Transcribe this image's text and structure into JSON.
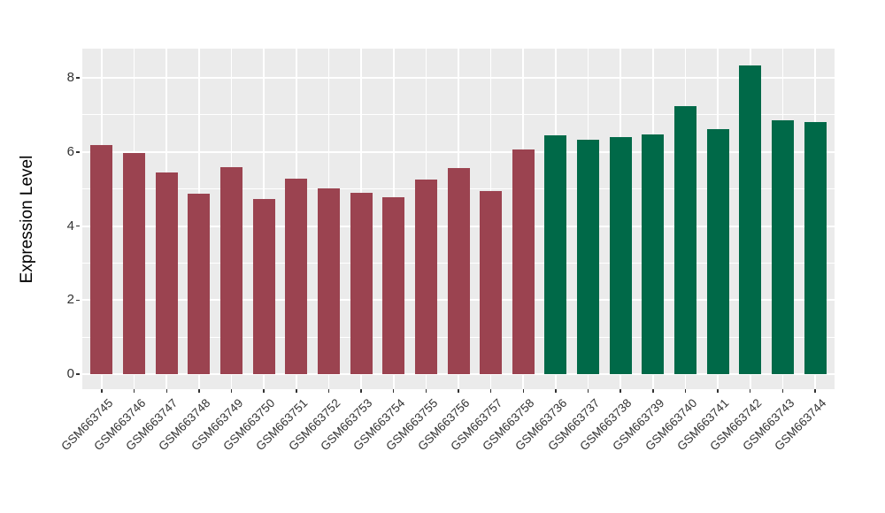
{
  "chart_data": {
    "type": "bar",
    "title": "",
    "ylabel": "Expression Level",
    "xlabel": "",
    "categories": [
      "GSM663745",
      "GSM663746",
      "GSM663747",
      "GSM663748",
      "GSM663749",
      "GSM663750",
      "GSM663751",
      "GSM663752",
      "GSM663753",
      "GSM663754",
      "GSM663755",
      "GSM663756",
      "GSM663757",
      "GSM663758",
      "GSM663736",
      "GSM663737",
      "GSM663738",
      "GSM663739",
      "GSM663740",
      "GSM663741",
      "GSM663742",
      "GSM663743",
      "GSM663744"
    ],
    "values": [
      6.18,
      5.96,
      5.44,
      4.87,
      5.58,
      4.73,
      5.28,
      5.01,
      4.89,
      4.77,
      5.26,
      5.56,
      4.95,
      6.06,
      6.44,
      6.34,
      6.4,
      6.47,
      7.23,
      6.62,
      8.34,
      6.86,
      6.81
    ],
    "bar_colors": [
      "#9B4350",
      "#9B4350",
      "#9B4350",
      "#9B4350",
      "#9B4350",
      "#9B4350",
      "#9B4350",
      "#9B4350",
      "#9B4350",
      "#9B4350",
      "#9B4350",
      "#9B4350",
      "#9B4350",
      "#9B4350",
      "#006948",
      "#006948",
      "#006948",
      "#006948",
      "#006948",
      "#006948",
      "#006948",
      "#006948",
      "#006948"
    ],
    "palette": {
      "group1_maroon": "#9B4350",
      "group2_green": "#006948"
    },
    "yticks": [
      0,
      2,
      4,
      6,
      8
    ],
    "minor_yticks": [
      1,
      3,
      5,
      7
    ],
    "ylim": [
      0,
      8.8
    ],
    "grid": "on",
    "legend_position": "none",
    "panel_background": "#EBEBEB",
    "grid_color": "#FFFFFF"
  }
}
